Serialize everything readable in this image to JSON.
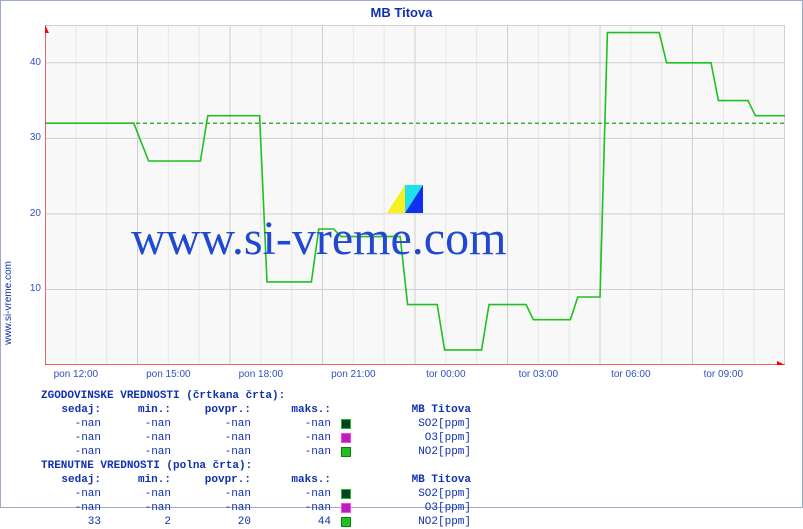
{
  "title": "MB Titova",
  "side_label": "www.si-vreme.com",
  "watermark_text": "www.si-vreme.com",
  "watermark_color": "#2048d0",
  "chart": {
    "type": "line",
    "plot_background": "#f8f8f8",
    "frame_border": "#a0a8c8",
    "grid_color_major": "#e4e8e4",
    "grid_color_border": "#d0d0d0",
    "axis_arrow_color": "#ff0000",
    "dashed_reference_color": "#20a020",
    "dashed_reference_value": 32,
    "ylim": [
      0,
      45
    ],
    "ytick_step": 10,
    "yticks": [
      10,
      20,
      30,
      40
    ],
    "xlabels": [
      "pon 12:00",
      "pon 15:00",
      "pon 18:00",
      "pon 21:00",
      "tor 00:00",
      "tor 03:00",
      "tor 06:00",
      "tor 09:00"
    ],
    "x_count_hours": 24,
    "series_no2": {
      "color": "#20c020",
      "stroke_width": 1.6,
      "points": [
        [
          0.0,
          32
        ],
        [
          0.12,
          32
        ],
        [
          0.14,
          27
        ],
        [
          0.21,
          27
        ],
        [
          0.22,
          33
        ],
        [
          0.29,
          33
        ],
        [
          0.3,
          11
        ],
        [
          0.36,
          11
        ],
        [
          0.37,
          18
        ],
        [
          0.39,
          18
        ],
        [
          0.4,
          17
        ],
        [
          0.48,
          17
        ],
        [
          0.49,
          8
        ],
        [
          0.53,
          8
        ],
        [
          0.54,
          2
        ],
        [
          0.59,
          2
        ],
        [
          0.6,
          8
        ],
        [
          0.65,
          8
        ],
        [
          0.66,
          6
        ],
        [
          0.71,
          6
        ],
        [
          0.72,
          9
        ],
        [
          0.75,
          9
        ],
        [
          0.76,
          44
        ],
        [
          0.83,
          44
        ],
        [
          0.84,
          40
        ],
        [
          0.9,
          40
        ],
        [
          0.91,
          35
        ],
        [
          0.95,
          35
        ],
        [
          0.96,
          33
        ],
        [
          1.0,
          33
        ]
      ]
    }
  },
  "tables": {
    "hist": {
      "title": "ZGODOVINSKE VREDNOSTI (črtkana črta):",
      "columns": [
        "sedaj:",
        "min.:",
        "povpr.:",
        "maks.:",
        "MB Titova"
      ],
      "rows": [
        {
          "sedaj": "-nan",
          "min": "-nan",
          "povpr": "-nan",
          "maks": "-nan",
          "swatch_fill": "#084028",
          "swatch_border": "#20c020",
          "series": "SO2[ppm]"
        },
        {
          "sedaj": "-nan",
          "min": "-nan",
          "povpr": "-nan",
          "maks": "-nan",
          "swatch_fill": "#b820b8",
          "swatch_border": "#ff40ff",
          "series": "O3[ppm]"
        },
        {
          "sedaj": "-nan",
          "min": "-nan",
          "povpr": "-nan",
          "maks": "-nan",
          "swatch_fill": "#20c020",
          "swatch_border": "#108010",
          "series": "NO2[ppm]"
        }
      ]
    },
    "curr": {
      "title": "TRENUTNE VREDNOSTI (polna črta):",
      "columns": [
        "sedaj:",
        "min.:",
        "povpr.:",
        "maks.:",
        "MB Titova"
      ],
      "rows": [
        {
          "sedaj": "-nan",
          "min": "-nan",
          "povpr": "-nan",
          "maks": "-nan",
          "swatch_fill": "#084028",
          "swatch_border": "#20c020",
          "series": "SO2[ppm]"
        },
        {
          "sedaj": "-nan",
          "min": "-nan",
          "povpr": "-nan",
          "maks": "-nan",
          "swatch_fill": "#b820b8",
          "swatch_border": "#ff40ff",
          "series": "O3[ppm]"
        },
        {
          "sedaj": "33",
          "min": "2",
          "povpr": "20",
          "maks": "44",
          "swatch_fill": "#20c020",
          "swatch_border": "#108010",
          "series": "NO2[ppm]"
        }
      ]
    }
  },
  "logo": {
    "triangle_yellow": "#f8f020",
    "triangle_cyan": "#20e0f0",
    "triangle_blue": "#1030f0"
  }
}
